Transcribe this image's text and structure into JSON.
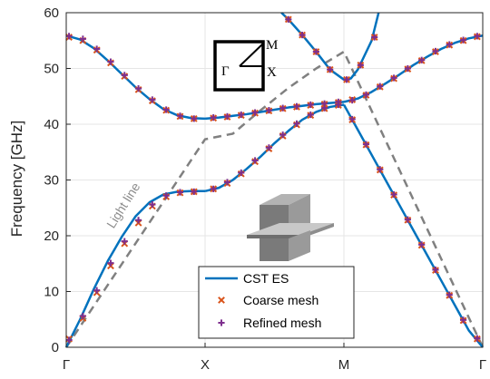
{
  "chart_data": {
    "type": "line",
    "ylabel": "Frequency [GHz]",
    "ylim": [
      0,
      60
    ],
    "yticks": [
      0,
      10,
      20,
      30,
      40,
      50,
      60
    ],
    "xlim": [
      0,
      3
    ],
    "xticks": [
      {
        "pos": 0,
        "label": "Γ"
      },
      {
        "pos": 1,
        "label": "X"
      },
      {
        "pos": 2,
        "label": "M"
      },
      {
        "pos": 3,
        "label": "Γ"
      }
    ],
    "grid": true,
    "legend_position": "bottom-center",
    "legend": [
      "CST ES",
      "Coarse mesh",
      "Refined mesh"
    ],
    "colors": {
      "cst": "#0072BD",
      "coarse": "#D95319",
      "refined": "#7E2F8E",
      "light": "#808080"
    },
    "annotations": {
      "light_line": "Light line"
    },
    "inset_labels": {
      "gamma": "Γ",
      "x": "X",
      "m": "M"
    },
    "series": [
      {
        "name": "CST ES",
        "style": "line",
        "bands": [
          {
            "x": [
              0,
              0.1,
              0.2,
              0.3,
              0.4,
              0.5,
              0.6,
              0.7,
              0.8,
              0.9,
              1.0
            ],
            "y": [
              0,
              5,
              10.5,
              15.5,
              19.8,
              23.5,
              26,
              27.4,
              27.9,
              28,
              28
            ]
          },
          {
            "x": [
              1.0,
              1.1,
              1.2,
              1.3,
              1.4,
              1.5,
              1.6,
              1.7,
              1.8,
              1.9,
              2.0
            ],
            "y": [
              28,
              28.6,
              30,
              32,
              34.2,
              36.6,
              38.8,
              40.8,
              42.2,
              43.1,
              43.5
            ]
          },
          {
            "x": [
              0,
              0.1,
              0.2,
              0.3,
              0.4,
              0.5,
              0.6,
              0.7,
              0.8,
              0.9,
              1.0
            ],
            "y": [
              55.9,
              55.2,
              53.6,
              51.4,
              49,
              46.6,
              44.5,
              42.7,
              41.6,
              41.1,
              41
            ]
          },
          {
            "x": [
              1.0,
              1.1,
              1.2,
              1.3,
              1.4,
              1.5,
              1.6,
              1.7,
              1.8,
              1.9,
              2.0
            ],
            "y": [
              41,
              41.2,
              41.5,
              41.8,
              42.2,
              42.6,
              43,
              43.3,
              43.6,
              43.8,
              44
            ]
          },
          {
            "x": [
              1.55,
              1.6,
              1.7,
              1.8,
              1.9,
              2.0,
              2.05,
              2.1,
              2.2,
              2.25
            ],
            "y": [
              60,
              58.8,
              56,
              53,
              49.8,
              48,
              48.2,
              49.8,
              55,
              60
            ]
          },
          {
            "x": [
              2.0,
              2.1,
              2.2,
              2.3,
              2.4,
              2.5,
              2.6,
              2.7,
              2.8,
              2.9,
              3.0
            ],
            "y": [
              43.5,
              39,
              34.5,
              30,
              25.5,
              21,
              16.5,
              12,
              7.5,
              3,
              0
            ]
          },
          {
            "x": [
              2.0,
              2.1,
              2.2,
              2.3,
              2.4,
              2.5,
              2.6,
              2.7,
              2.8,
              2.9,
              3.0
            ],
            "y": [
              44,
              44.6,
              45.8,
              47.3,
              48.9,
              50.6,
              52.1,
              53.5,
              54.6,
              55.4,
              55.9
            ]
          }
        ]
      },
      {
        "name": "Coarse mesh",
        "style": "marker",
        "points": [
          [
            0.02,
            1.5
          ],
          [
            0.12,
            5.2
          ],
          [
            0.22,
            9.8
          ],
          [
            0.32,
            14.6
          ],
          [
            0.42,
            18.6
          ],
          [
            0.52,
            22.3
          ],
          [
            0.62,
            25.3
          ],
          [
            0.72,
            27
          ],
          [
            0.82,
            27.7
          ],
          [
            0.92,
            27.9
          ],
          [
            1.06,
            28.4
          ],
          [
            1.16,
            29.4
          ],
          [
            1.26,
            31.1
          ],
          [
            1.36,
            33.3
          ],
          [
            1.46,
            35.6
          ],
          [
            1.56,
            37.9
          ],
          [
            1.66,
            39.9
          ],
          [
            1.76,
            41.6
          ],
          [
            1.86,
            42.8
          ],
          [
            1.96,
            43.4
          ],
          [
            0.02,
            55.6
          ],
          [
            0.12,
            55
          ],
          [
            0.22,
            53.3
          ],
          [
            0.32,
            51
          ],
          [
            0.42,
            48.6
          ],
          [
            0.52,
            46.2
          ],
          [
            0.62,
            44.2
          ],
          [
            0.72,
            42.5
          ],
          [
            0.82,
            41.4
          ],
          [
            0.92,
            41
          ],
          [
            1.06,
            41.1
          ],
          [
            1.16,
            41.3
          ],
          [
            1.26,
            41.6
          ],
          [
            1.36,
            42
          ],
          [
            1.46,
            42.4
          ],
          [
            1.56,
            42.8
          ],
          [
            1.66,
            43.1
          ],
          [
            1.76,
            43.4
          ],
          [
            1.86,
            43.6
          ],
          [
            1.96,
            43.9
          ],
          [
            1.6,
            58.8
          ],
          [
            1.7,
            56
          ],
          [
            1.8,
            53
          ],
          [
            1.9,
            49.8
          ],
          [
            2.02,
            48
          ],
          [
            2.12,
            50.6
          ],
          [
            2.22,
            55.6
          ],
          [
            2.06,
            40.8
          ],
          [
            2.16,
            36.3
          ],
          [
            2.26,
            31.8
          ],
          [
            2.36,
            27.3
          ],
          [
            2.46,
            22.8
          ],
          [
            2.56,
            18.3
          ],
          [
            2.66,
            13.8
          ],
          [
            2.76,
            9.3
          ],
          [
            2.86,
            4.8
          ],
          [
            2.96,
            1.5
          ],
          [
            2.06,
            44.4
          ],
          [
            2.16,
            45.2
          ],
          [
            2.26,
            46.7
          ],
          [
            2.36,
            48.2
          ],
          [
            2.46,
            49.9
          ],
          [
            2.56,
            51.4
          ],
          [
            2.66,
            53
          ],
          [
            2.76,
            54.2
          ],
          [
            2.86,
            55
          ],
          [
            2.96,
            55.7
          ]
        ]
      },
      {
        "name": "Refined mesh",
        "style": "marker",
        "points": [
          [
            0.02,
            1.3
          ],
          [
            0.12,
            5.6
          ],
          [
            0.22,
            10.2
          ],
          [
            0.32,
            15.1
          ],
          [
            0.42,
            19
          ],
          [
            0.52,
            22.8
          ],
          [
            0.62,
            25.6
          ],
          [
            0.72,
            27.2
          ],
          [
            0.82,
            27.8
          ],
          [
            0.92,
            27.9
          ],
          [
            1.06,
            28.4
          ],
          [
            1.16,
            29.6
          ],
          [
            1.26,
            31.3
          ],
          [
            1.36,
            33.5
          ],
          [
            1.46,
            35.8
          ],
          [
            1.56,
            38.1
          ],
          [
            1.66,
            40.1
          ],
          [
            1.76,
            41.7
          ],
          [
            1.86,
            42.9
          ],
          [
            1.96,
            43.5
          ],
          [
            0.02,
            55.8
          ],
          [
            0.12,
            55.3
          ],
          [
            0.22,
            53.5
          ],
          [
            0.32,
            51.2
          ],
          [
            0.42,
            48.8
          ],
          [
            0.52,
            46.4
          ],
          [
            0.62,
            44.4
          ],
          [
            0.72,
            42.6
          ],
          [
            0.82,
            41.5
          ],
          [
            0.92,
            41
          ],
          [
            1.06,
            41.2
          ],
          [
            1.16,
            41.4
          ],
          [
            1.26,
            41.7
          ],
          [
            1.36,
            42.1
          ],
          [
            1.46,
            42.5
          ],
          [
            1.56,
            42.9
          ],
          [
            1.66,
            43.2
          ],
          [
            1.76,
            43.5
          ],
          [
            1.86,
            43.7
          ],
          [
            1.96,
            44
          ],
          [
            1.6,
            58.8
          ],
          [
            1.7,
            56
          ],
          [
            1.8,
            53
          ],
          [
            1.9,
            49.8
          ],
          [
            2.02,
            48
          ],
          [
            2.12,
            50.6
          ],
          [
            2.22,
            55.6
          ],
          [
            2.06,
            40.9
          ],
          [
            2.16,
            36.4
          ],
          [
            2.26,
            31.9
          ],
          [
            2.36,
            27.4
          ],
          [
            2.46,
            22.9
          ],
          [
            2.56,
            18.4
          ],
          [
            2.66,
            13.9
          ],
          [
            2.76,
            9.4
          ],
          [
            2.86,
            4.9
          ],
          [
            2.96,
            1.6
          ],
          [
            2.06,
            44.3
          ],
          [
            2.16,
            45.3
          ],
          [
            2.26,
            46.8
          ],
          [
            2.36,
            48.3
          ],
          [
            2.46,
            50
          ],
          [
            2.56,
            51.5
          ],
          [
            2.66,
            53.1
          ],
          [
            2.76,
            54.3
          ],
          [
            2.86,
            55.1
          ],
          [
            2.96,
            55.8
          ]
        ]
      },
      {
        "name": "Light line",
        "style": "dashed",
        "points": [
          [
            0,
            0
          ],
          [
            1.0,
            37.3
          ],
          [
            1.2,
            38.3
          ],
          [
            1.4,
            42.5
          ],
          [
            1.6,
            46.5
          ],
          [
            1.8,
            50
          ],
          [
            2.0,
            53
          ],
          [
            3.0,
            0
          ]
        ]
      }
    ]
  }
}
